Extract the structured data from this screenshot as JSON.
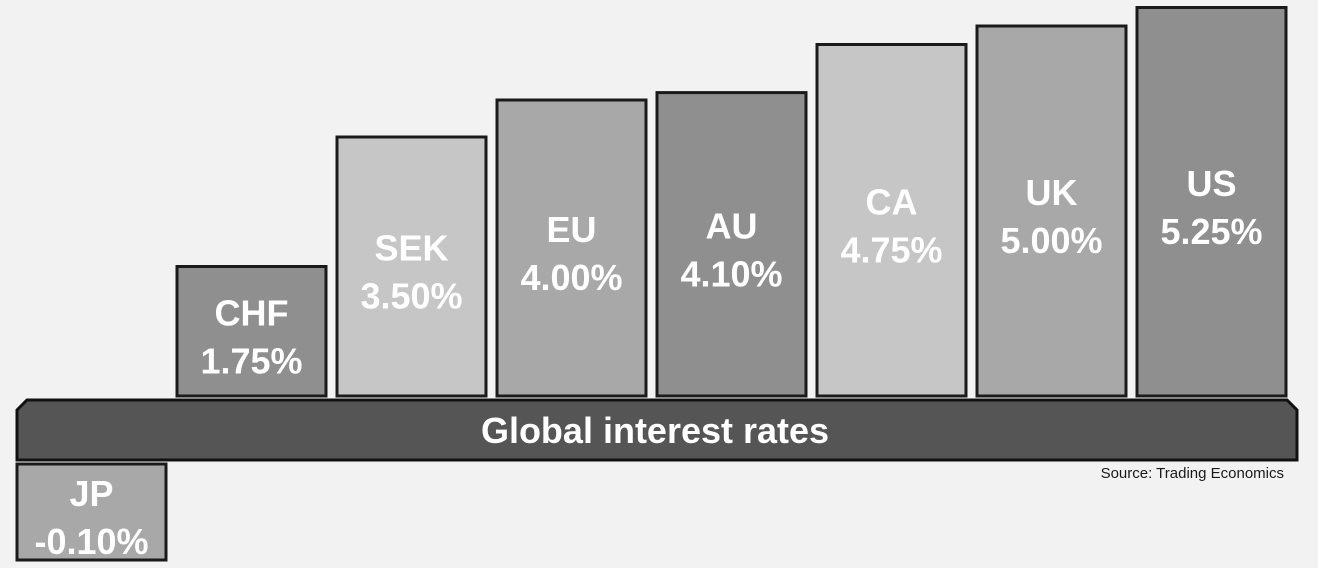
{
  "chart_data": {
    "type": "bar",
    "title": "Global interest rates",
    "source": "Source: Trading Economics",
    "categories": [
      "JP",
      "CHF",
      "SEK",
      "EU",
      "AU",
      "CA",
      "UK",
      "US"
    ],
    "values": [
      -0.1,
      1.75,
      3.5,
      4.0,
      4.1,
      4.75,
      5.0,
      5.25
    ],
    "value_labels": [
      "-0.10%",
      "1.75%",
      "3.50%",
      "4.00%",
      "4.10%",
      "4.75%",
      "5.00%",
      "5.25%"
    ],
    "bar_colors": [
      "#a8a8a8",
      "#8f8f8f",
      "#c6c6c6",
      "#a8a8a8",
      "#8f8f8f",
      "#c6c6c6",
      "#a8a8a8",
      "#8f8f8f"
    ],
    "band_color": "#555555",
    "background": "#f2f2f2",
    "legend": "none",
    "grid": false
  }
}
